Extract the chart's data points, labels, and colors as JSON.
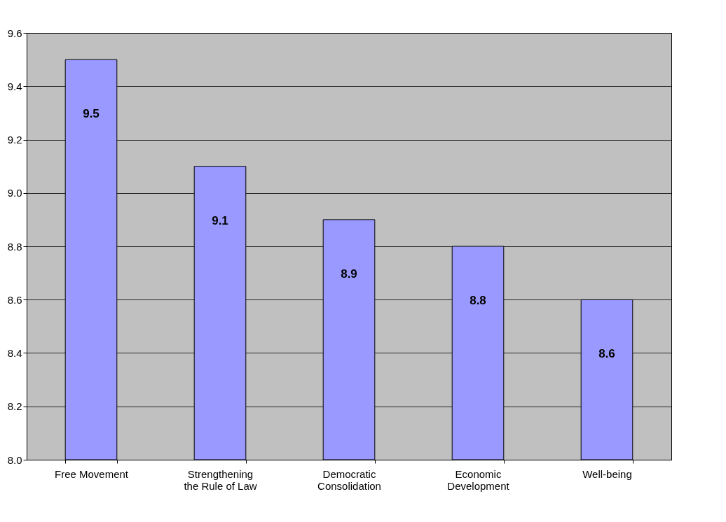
{
  "chart_data": {
    "type": "bar",
    "categories": [
      "Free Movement",
      "Strengthening the Rule of Law",
      "Democratic Consolidation",
      "Economic Development",
      "Well-being"
    ],
    "values": [
      9.5,
      9.1,
      8.9,
      8.8,
      8.6
    ],
    "color": "#9999ff",
    "data_labels": true,
    "ylim": [
      8.0,
      9.6
    ],
    "yticks": [
      {
        "value": 8.0,
        "label": "8.0"
      },
      {
        "value": 8.2,
        "label": "8.2"
      },
      {
        "value": 8.4,
        "label": "8.4"
      },
      {
        "value": 8.6,
        "label": "8.6"
      },
      {
        "value": 8.8,
        "label": "8.8"
      },
      {
        "value": 9.0,
        "label": "9.0"
      },
      {
        "value": 9.2,
        "label": "9.2"
      },
      {
        "value": 9.4,
        "label": "9.4"
      },
      {
        "value": 9.6,
        "label": "9.6"
      }
    ],
    "grid": "y"
  }
}
